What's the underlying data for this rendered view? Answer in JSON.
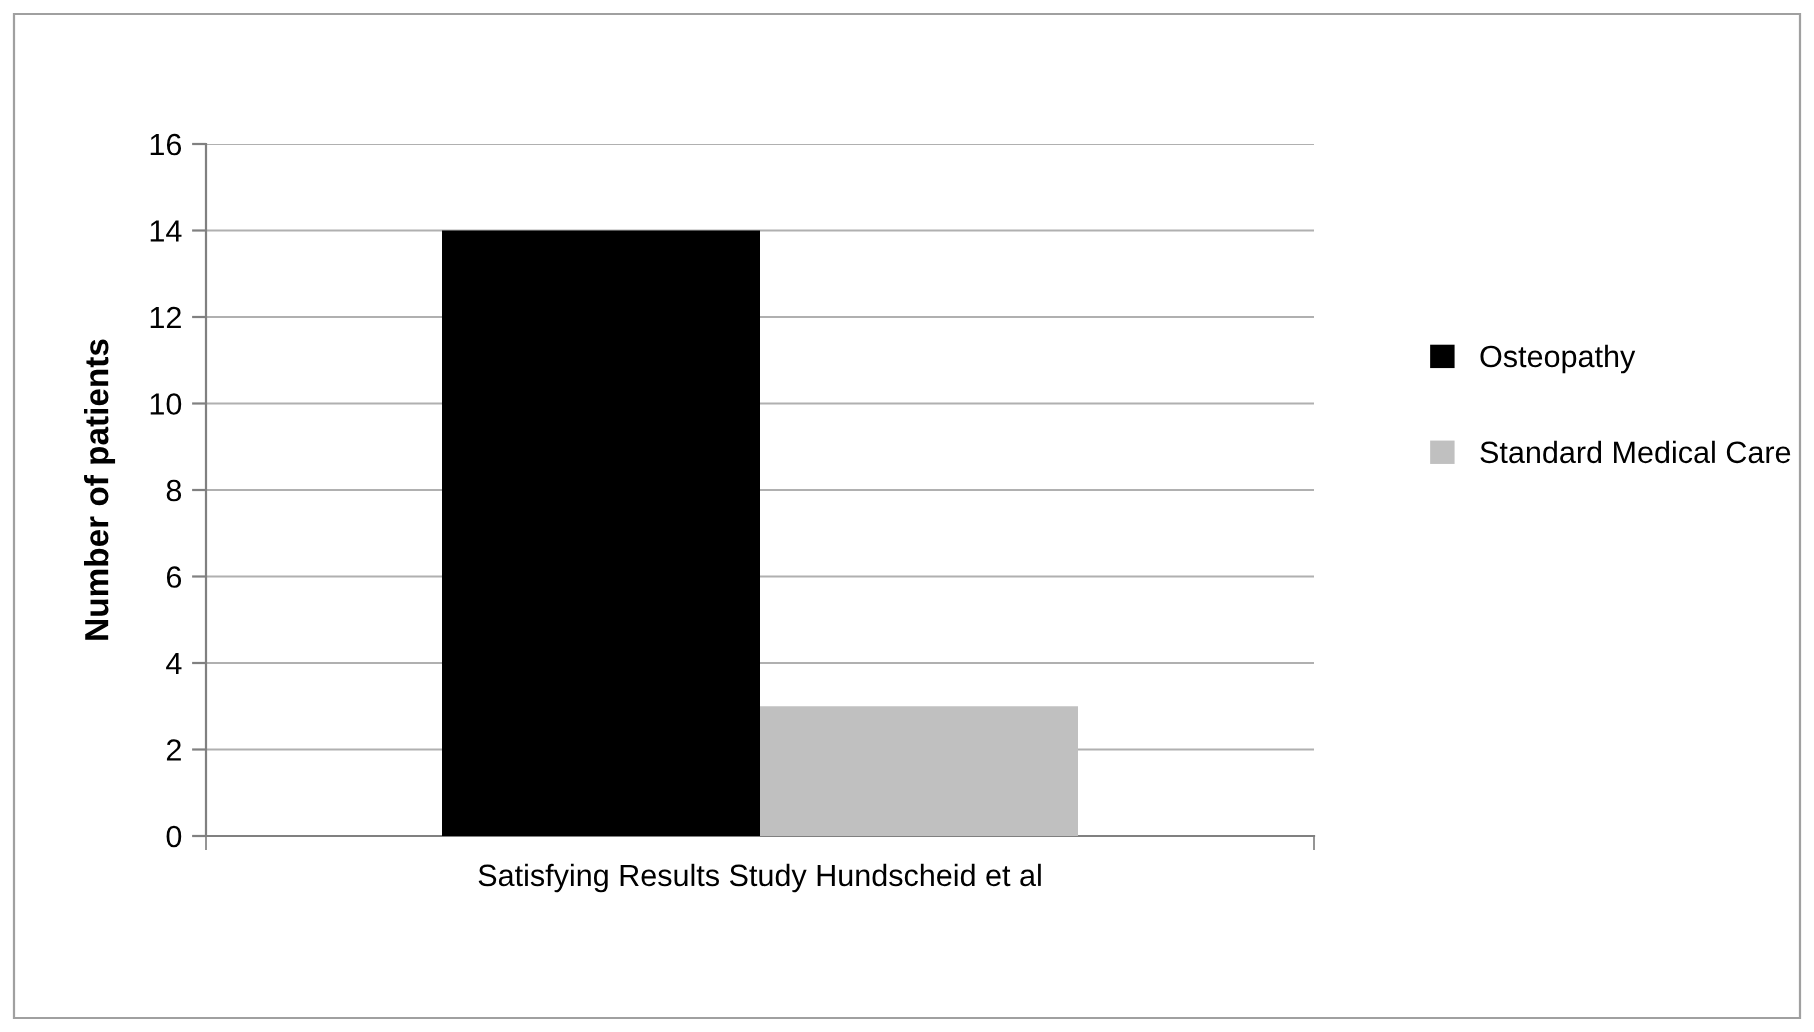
{
  "chart_data": {
    "type": "bar",
    "ylabel": "Number of patients",
    "categories": [
      "Satisfying Results Study Hundscheid et al"
    ],
    "series": [
      {
        "name": "Osteopathy",
        "color": "#000000",
        "values": [
          14
        ]
      },
      {
        "name": "Standard Medical Care",
        "color": "#c0c0c0",
        "values": [
          3
        ]
      }
    ],
    "ylim": [
      0,
      16
    ],
    "yticks": [
      0,
      2,
      4,
      6,
      8,
      10,
      12,
      14,
      16
    ],
    "grid": "y",
    "legend": "right"
  }
}
